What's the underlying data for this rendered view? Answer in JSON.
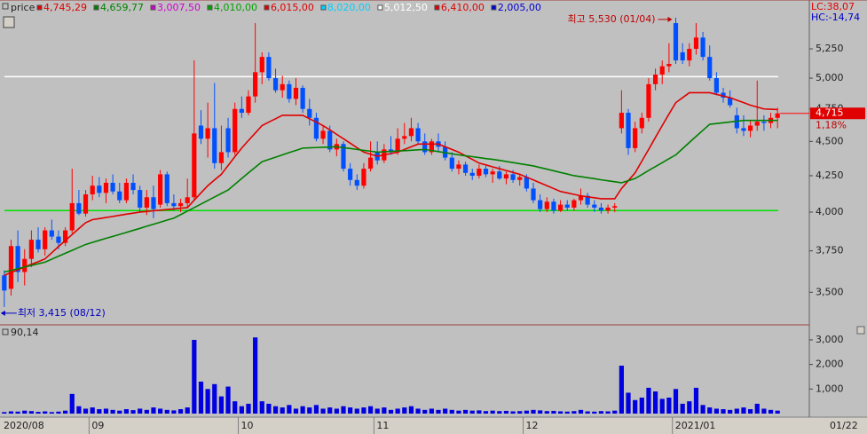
{
  "chart_data": [
    {
      "type": "candlestick",
      "title": "price",
      "header": [
        {
          "text": "4,745,29",
          "color": "#e00000"
        },
        {
          "text": "4,659,77",
          "color": "#008000"
        },
        {
          "text": "3,007,50",
          "color": "#d000d0"
        },
        {
          "text": "4,010,00",
          "color": "#00a000"
        },
        {
          "text": "6,015,00",
          "color": "#e00000"
        },
        {
          "text": "8,020,00",
          "color": "#00d0ff"
        },
        {
          "text": "5,012,50",
          "color": "#ffffff"
        },
        {
          "text": "6,410,00",
          "color": "#e00000"
        },
        {
          "text": "2,005,00",
          "color": "#0000d0"
        }
      ],
      "lc": "LC:38,07",
      "hc": "HC:-14,74",
      "annotations": {
        "high": "최고 5,530 (01/04)",
        "low": "최저 3,415 (08/12)"
      },
      "last_price": {
        "value": 4715,
        "label": "4,715"
      },
      "change": "1,18%",
      "cursor_date": "01/22",
      "log": true,
      "ylim": [
        3320,
        5670
      ],
      "yticks": [
        {
          "value": 3500,
          "label": "3,500"
        },
        {
          "value": 3750,
          "label": "3,750"
        },
        {
          "value": 4000,
          "label": "4,000"
        },
        {
          "value": 4250,
          "label": "4,250"
        },
        {
          "value": 4500,
          "label": "4,500"
        },
        {
          "value": 4750,
          "label": "4,750"
        },
        {
          "value": 5000,
          "label": "5,000"
        },
        {
          "value": 5250,
          "label": "5,250"
        }
      ],
      "up_color": "#ff0000",
      "down_color": "#0050ff",
      "hlines": [
        {
          "value": 5012.5,
          "color": "#ffffff"
        },
        {
          "value": 4010,
          "color": "#00e000"
        }
      ],
      "categories": [
        "2020/08",
        null,
        null,
        null,
        null,
        null,
        null,
        null,
        null,
        null,
        null,
        null,
        null,
        "09",
        null,
        null,
        null,
        null,
        null,
        null,
        null,
        null,
        null,
        null,
        null,
        null,
        null,
        null,
        null,
        null,
        null,
        null,
        null,
        null,
        null,
        "10",
        null,
        null,
        null,
        null,
        null,
        null,
        null,
        null,
        null,
        null,
        null,
        null,
        null,
        null,
        null,
        null,
        null,
        null,
        null,
        "11",
        null,
        null,
        null,
        null,
        null,
        null,
        null,
        null,
        null,
        null,
        null,
        null,
        null,
        null,
        null,
        null,
        null,
        null,
        null,
        null,
        null,
        "12",
        null,
        null,
        null,
        null,
        null,
        null,
        null,
        null,
        null,
        null,
        null,
        null,
        null,
        null,
        null,
        null,
        null,
        null,
        null,
        null,
        null,
        "2021/01",
        null,
        null,
        null,
        null,
        null,
        null,
        null,
        null,
        null,
        null,
        null,
        null,
        null,
        null,
        null
      ],
      "ohlc": [
        [
          3600,
          3630,
          3415,
          3510
        ],
        [
          3520,
          3820,
          3480,
          3780
        ],
        [
          3780,
          3880,
          3560,
          3620
        ],
        [
          3620,
          3760,
          3540,
          3700
        ],
        [
          3700,
          3880,
          3650,
          3820
        ],
        [
          3820,
          3900,
          3740,
          3760
        ],
        [
          3760,
          3900,
          3720,
          3880
        ],
        [
          3880,
          3950,
          3820,
          3840
        ],
        [
          3840,
          3880,
          3760,
          3800
        ],
        [
          3800,
          3900,
          3780,
          3880
        ],
        [
          3880,
          4300,
          3860,
          4060
        ],
        [
          4060,
          4150,
          3980,
          3990
        ],
        [
          3990,
          4150,
          3970,
          4120
        ],
        [
          4120,
          4250,
          4080,
          4180
        ],
        [
          4180,
          4240,
          4100,
          4130
        ],
        [
          4130,
          4230,
          4060,
          4200
        ],
        [
          4200,
          4260,
          4120,
          4140
        ],
        [
          4140,
          4200,
          4060,
          4080
        ],
        [
          4080,
          4230,
          4060,
          4200
        ],
        [
          4200,
          4260,
          4120,
          4150
        ],
        [
          4150,
          4180,
          4000,
          4030
        ],
        [
          4030,
          4150,
          3980,
          4100
        ],
        [
          4100,
          4180,
          3960,
          4020
        ],
        [
          4050,
          4290,
          4030,
          4260
        ],
        [
          4260,
          4280,
          4040,
          4060
        ],
        [
          4060,
          4120,
          4010,
          4040
        ],
        [
          4040,
          4090,
          4000,
          4060
        ],
        [
          4060,
          4230,
          4030,
          4100
        ],
        [
          4100,
          5150,
          4080,
          4560
        ],
        [
          4620,
          4740,
          4480,
          4520
        ],
        [
          4520,
          4800,
          4380,
          4600
        ],
        [
          4600,
          4960,
          4300,
          4340
        ],
        [
          4340,
          4620,
          4290,
          4420
        ],
        [
          4600,
          4680,
          4380,
          4420
        ],
        [
          4420,
          4800,
          4400,
          4750
        ],
        [
          4750,
          4850,
          4680,
          4720
        ],
        [
          4720,
          4900,
          4700,
          4850
        ],
        [
          4850,
          5480,
          4800,
          5050
        ],
        [
          5050,
          5220,
          4950,
          5180
        ],
        [
          5180,
          5220,
          4980,
          5000
        ],
        [
          5000,
          5080,
          4880,
          4900
        ],
        [
          4900,
          5020,
          4840,
          4950
        ],
        [
          4950,
          4980,
          4800,
          4830
        ],
        [
          4830,
          5000,
          4780,
          4920
        ],
        [
          4920,
          4940,
          4720,
          4750
        ],
        [
          4750,
          4830,
          4620,
          4680
        ],
        [
          4680,
          4720,
          4500,
          4520
        ],
        [
          4520,
          4620,
          4480,
          4580
        ],
        [
          4580,
          4620,
          4420,
          4440
        ],
        [
          4440,
          4520,
          4390,
          4480
        ],
        [
          4480,
          4500,
          4280,
          4300
        ],
        [
          4300,
          4340,
          4180,
          4220
        ],
        [
          4220,
          4260,
          4150,
          4180
        ],
        [
          4180,
          4340,
          4160,
          4300
        ],
        [
          4300,
          4500,
          4280,
          4380
        ],
        [
          4420,
          4500,
          4330,
          4360
        ],
        [
          4360,
          4480,
          4340,
          4440
        ],
        [
          4440,
          4540,
          4400,
          4420
        ],
        [
          4420,
          4600,
          4400,
          4520
        ],
        [
          4520,
          4640,
          4480,
          4540
        ],
        [
          4540,
          4680,
          4500,
          4600
        ],
        [
          4600,
          4640,
          4480,
          4500
        ],
        [
          4500,
          4560,
          4400,
          4420
        ],
        [
          4420,
          4520,
          4400,
          4500
        ],
        [
          4500,
          4560,
          4420,
          4460
        ],
        [
          4460,
          4500,
          4360,
          4380
        ],
        [
          4380,
          4420,
          4280,
          4300
        ],
        [
          4300,
          4360,
          4260,
          4330
        ],
        [
          4330,
          4350,
          4250,
          4270
        ],
        [
          4270,
          4300,
          4220,
          4250
        ],
        [
          4250,
          4330,
          4230,
          4300
        ],
        [
          4300,
          4320,
          4240,
          4260
        ],
        [
          4260,
          4300,
          4200,
          4280
        ],
        [
          4280,
          4320,
          4220,
          4230
        ],
        [
          4230,
          4280,
          4190,
          4260
        ],
        [
          4260,
          4290,
          4200,
          4220
        ],
        [
          4220,
          4260,
          4180,
          4240
        ],
        [
          4240,
          4260,
          4140,
          4160
        ],
        [
          4160,
          4200,
          4060,
          4080
        ],
        [
          4080,
          4120,
          4000,
          4020
        ],
        [
          4020,
          4100,
          4000,
          4070
        ],
        [
          4070,
          4090,
          3990,
          4010
        ],
        [
          4010,
          4080,
          4000,
          4050
        ],
        [
          4050,
          4080,
          4010,
          4030
        ],
        [
          4030,
          4090,
          4010,
          4080
        ],
        [
          4080,
          4160,
          4050,
          4110
        ],
        [
          4110,
          4130,
          4030,
          4050
        ],
        [
          4050,
          4080,
          4000,
          4030
        ],
        [
          4030,
          4060,
          3990,
          4010
        ],
        [
          4010,
          4050,
          3990,
          4030
        ],
        [
          4030,
          4060,
          4000,
          4040
        ],
        [
          4600,
          4900,
          4560,
          4720
        ],
        [
          4720,
          4750,
          4400,
          4450
        ],
        [
          4450,
          4650,
          4420,
          4600
        ],
        [
          4600,
          4720,
          4560,
          4680
        ],
        [
          4680,
          5000,
          4650,
          4950
        ],
        [
          4950,
          5080,
          4900,
          5030
        ],
        [
          5030,
          5150,
          4950,
          5100
        ],
        [
          5100,
          5300,
          5050,
          5120
        ],
        [
          5480,
          5530,
          5120,
          5150
        ],
        [
          5220,
          5300,
          5120,
          5150
        ],
        [
          5150,
          5300,
          5100,
          5250
        ],
        [
          5250,
          5480,
          5200,
          5350
        ],
        [
          5350,
          5400,
          5150,
          5180
        ],
        [
          5180,
          5280,
          4980,
          5000
        ],
        [
          5000,
          5050,
          4860,
          4880
        ],
        [
          4880,
          4920,
          4800,
          4840
        ],
        [
          4840,
          4900,
          4760,
          4780
        ],
        [
          4700,
          4760,
          4560,
          4600
        ],
        [
          4600,
          4700,
          4540,
          4580
        ],
        [
          4580,
          4660,
          4530,
          4620
        ],
        [
          4620,
          4980,
          4580,
          4650
        ],
        [
          4650,
          4700,
          4580,
          4640
        ],
        [
          4640,
          4720,
          4600,
          4680
        ],
        [
          4680,
          4760,
          4600,
          4715
        ]
      ],
      "series": [
        {
          "color": "#e00000",
          "values": [
            3600,
            3617,
            3633,
            3650,
            3667,
            3683,
            3700,
            3738,
            3777,
            3815,
            3853,
            3892,
            3930,
            3950,
            3957,
            3964,
            3971,
            3979,
            3986,
            3993,
            4000,
            4004,
            4009,
            4013,
            4017,
            4021,
            4026,
            4030,
            4080,
            4130,
            4180,
            4220,
            4260,
            4323,
            4387,
            4450,
            4507,
            4563,
            4620,
            4647,
            4673,
            4700,
            4700,
            4700,
            4700,
            4673,
            4647,
            4620,
            4587,
            4553,
            4520,
            4487,
            4453,
            4420,
            4405,
            4390,
            4400,
            4410,
            4420,
            4440,
            4460,
            4480,
            4480,
            4480,
            4480,
            4460,
            4440,
            4420,
            4393,
            4367,
            4340,
            4327,
            4313,
            4300,
            4287,
            4273,
            4260,
            4240,
            4220,
            4200,
            4180,
            4160,
            4140,
            4130,
            4120,
            4110,
            4103,
            4097,
            4090,
            4090,
            4090,
            4160,
            4215,
            4270,
            4355,
            4440,
            4530,
            4620,
            4710,
            4800,
            4840,
            4880,
            4880,
            4880,
            4880,
            4867,
            4853,
            4840,
            4820,
            4800,
            4780,
            4765,
            4750,
            4748,
            4745
          ]
        },
        {
          "color": "#008000",
          "values": [
            3620,
            3630,
            3640,
            3650,
            3660,
            3670,
            3680,
            3698,
            3717,
            3735,
            3753,
            3772,
            3790,
            3803,
            3816,
            3829,
            3841,
            3854,
            3867,
            3880,
            3893,
            3907,
            3920,
            3933,
            3947,
            3960,
            3983,
            4007,
            4030,
            4054,
            4078,
            4102,
            4126,
            4150,
            4190,
            4230,
            4270,
            4310,
            4350,
            4367,
            4383,
            4400,
            4417,
            4433,
            4450,
            4452,
            4454,
            4456,
            4458,
            4460,
            4453,
            4447,
            4440,
            4433,
            4427,
            4420,
            4423,
            4426,
            4429,
            4431,
            4434,
            4437,
            4440,
            4432,
            4424,
            4416,
            4408,
            4400,
            4393,
            4387,
            4380,
            4373,
            4367,
            4360,
            4352,
            4344,
            4336,
            4328,
            4320,
            4308,
            4297,
            4285,
            4273,
            4262,
            4250,
            4243,
            4236,
            4229,
            4221,
            4214,
            4207,
            4200,
            4215,
            4230,
            4258,
            4287,
            4315,
            4343,
            4372,
            4400,
            4446,
            4492,
            4538,
            4584,
            4630,
            4636,
            4642,
            4648,
            4654,
            4660,
            4660,
            4660,
            4660,
            4660,
            4660
          ]
        }
      ]
    },
    {
      "type": "bar",
      "title": "90,14",
      "color": "#0000e0",
      "ylim": [
        0,
        3540
      ],
      "yticks": [
        {
          "value": 1000,
          "label": "1,000"
        },
        {
          "value": 2000,
          "label": "2,000"
        },
        {
          "value": 3000,
          "label": "3,000"
        }
      ],
      "values": [
        60,
        90,
        80,
        120,
        100,
        70,
        90,
        60,
        80,
        120,
        800,
        300,
        200,
        250,
        180,
        200,
        150,
        120,
        180,
        140,
        200,
        150,
        250,
        200,
        150,
        130,
        180,
        250,
        3000,
        1300,
        1000,
        1200,
        700,
        1100,
        500,
        300,
        400,
        3100,
        500,
        400,
        300,
        250,
        350,
        200,
        300,
        250,
        350,
        200,
        250,
        200,
        300,
        250,
        200,
        250,
        300,
        200,
        250,
        150,
        200,
        250,
        300,
        200,
        150,
        200,
        150,
        200,
        150,
        120,
        150,
        120,
        130,
        100,
        120,
        100,
        110,
        90,
        100,
        120,
        150,
        130,
        100,
        110,
        90,
        80,
        100,
        150,
        90,
        80,
        100,
        90,
        120,
        1950,
        850,
        550,
        650,
        1050,
        900,
        600,
        650,
        1000,
        400,
        500,
        1050,
        350,
        250,
        200,
        180,
        150,
        200,
        250,
        180,
        400,
        200,
        150,
        120
      ]
    }
  ]
}
